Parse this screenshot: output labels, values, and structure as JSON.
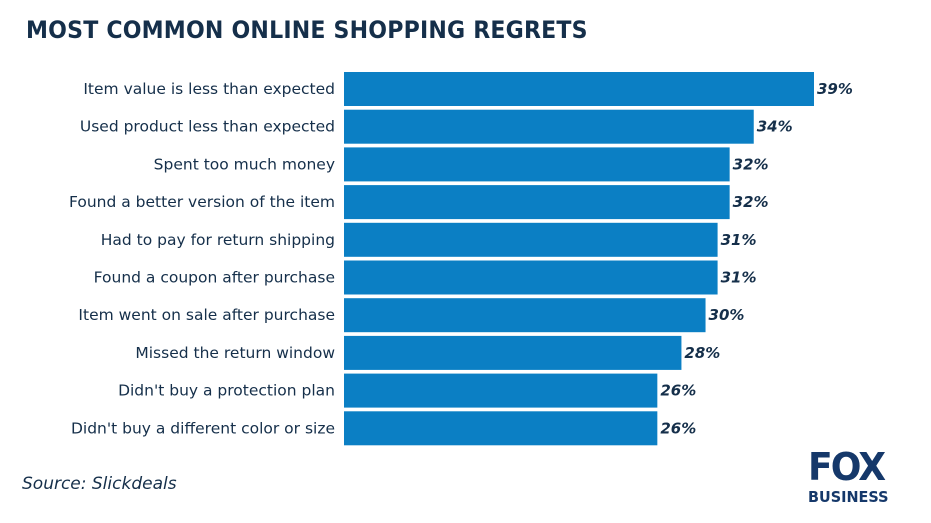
{
  "title": "MOST COMMON ONLINE SHOPPING REGRETS",
  "source": "Source:  Slickdeals",
  "logo": {
    "line1": "FOX",
    "line2": "BUSINESS"
  },
  "colors": {
    "bar": "#0b7fc4",
    "text": "#152f4a",
    "logo": "#15386a"
  },
  "chart_data": {
    "type": "bar",
    "orientation": "horizontal",
    "title": "MOST COMMON ONLINE SHOPPING REGRETS",
    "categories": [
      "Item value is less than expected",
      "Used product less than expected",
      "Spent too much money",
      "Found a better version of the item",
      "Had to pay for return shipping",
      "Found a coupon after purchase",
      "Item went on sale after purchase",
      "Missed the return window",
      "Didn't buy a protection plan",
      "Didn't buy a different color or size"
    ],
    "values": [
      39,
      34,
      32,
      32,
      31,
      31,
      30,
      28,
      26,
      26
    ],
    "value_labels": [
      "39%",
      "34%",
      "32%",
      "32%",
      "31%",
      "31%",
      "30%",
      "28%",
      "26%",
      "26%"
    ],
    "unit": "%",
    "xlim": [
      0,
      39
    ],
    "grid": false,
    "legend": "none"
  }
}
